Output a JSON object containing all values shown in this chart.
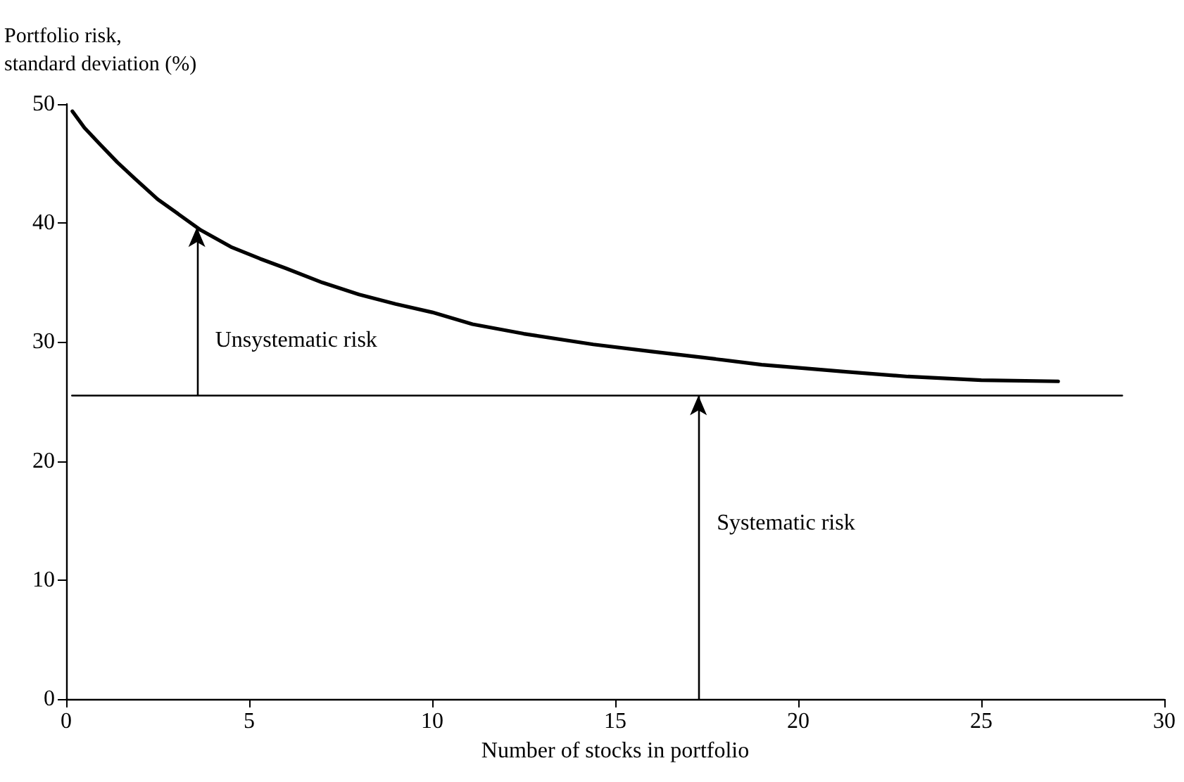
{
  "chart_data": {
    "type": "line",
    "xlabel": "Number of stocks in portfolio",
    "ylabel": "Portfolio risk,\nstandard deviation (%)",
    "xlim": [
      0,
      30
    ],
    "xticks": [
      0,
      5,
      10,
      15,
      20,
      25,
      30
    ],
    "ylim": [
      0,
      50
    ],
    "yticks": [
      0,
      10,
      20,
      30,
      40,
      50
    ],
    "grid": false,
    "marker": "none",
    "line_style": "solid",
    "series": [
      {
        "color": "#000000",
        "x": [
          0.17,
          0.5,
          0.93,
          1.4,
          1.89,
          2.5,
          3.0,
          3.68,
          4.5,
          5.3,
          6.0,
          7.0,
          8.0,
          9.0,
          10.0,
          11.1,
          12.5,
          14.4,
          16.0,
          17.4,
          19.0,
          21.3,
          23.0,
          25.0,
          27.1
        ],
        "values": [
          49.4,
          48.0,
          46.6,
          45.1,
          43.7,
          42.0,
          40.9,
          39.4,
          38.0,
          37.0,
          36.2,
          35.0,
          34.0,
          33.2,
          32.5,
          31.5,
          30.7,
          29.8,
          29.2,
          28.7,
          28.1,
          27.5,
          27.1,
          26.8,
          26.7
        ]
      },
      {
        "color": "#000000",
        "x": [
          0.16,
          28.85
        ],
        "values": [
          25.5,
          25.5
        ]
      }
    ],
    "annotations": [
      "Unsystematic risk",
      "Systematic risk"
    ]
  }
}
